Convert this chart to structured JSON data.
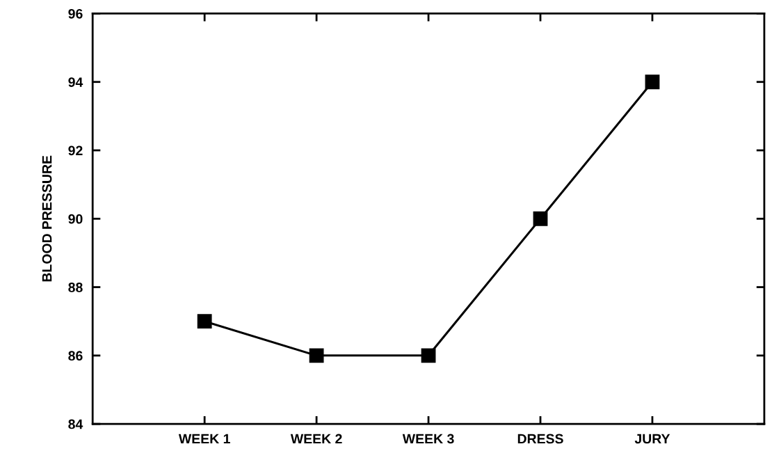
{
  "chart_data": {
    "type": "line",
    "ylabel": "BLOOD PRESSURE",
    "categories": [
      "WEEK 1",
      "WEEK 2",
      "WEEK 3",
      "DRESS",
      "JURY"
    ],
    "series": [
      {
        "color": "#000000",
        "values": [
          87,
          86,
          86,
          90,
          94
        ]
      }
    ],
    "ylim": [
      84,
      96
    ],
    "yticks": [
      84,
      86,
      88,
      90,
      92,
      94,
      96
    ],
    "marker": "square",
    "line_style": "solid"
  }
}
